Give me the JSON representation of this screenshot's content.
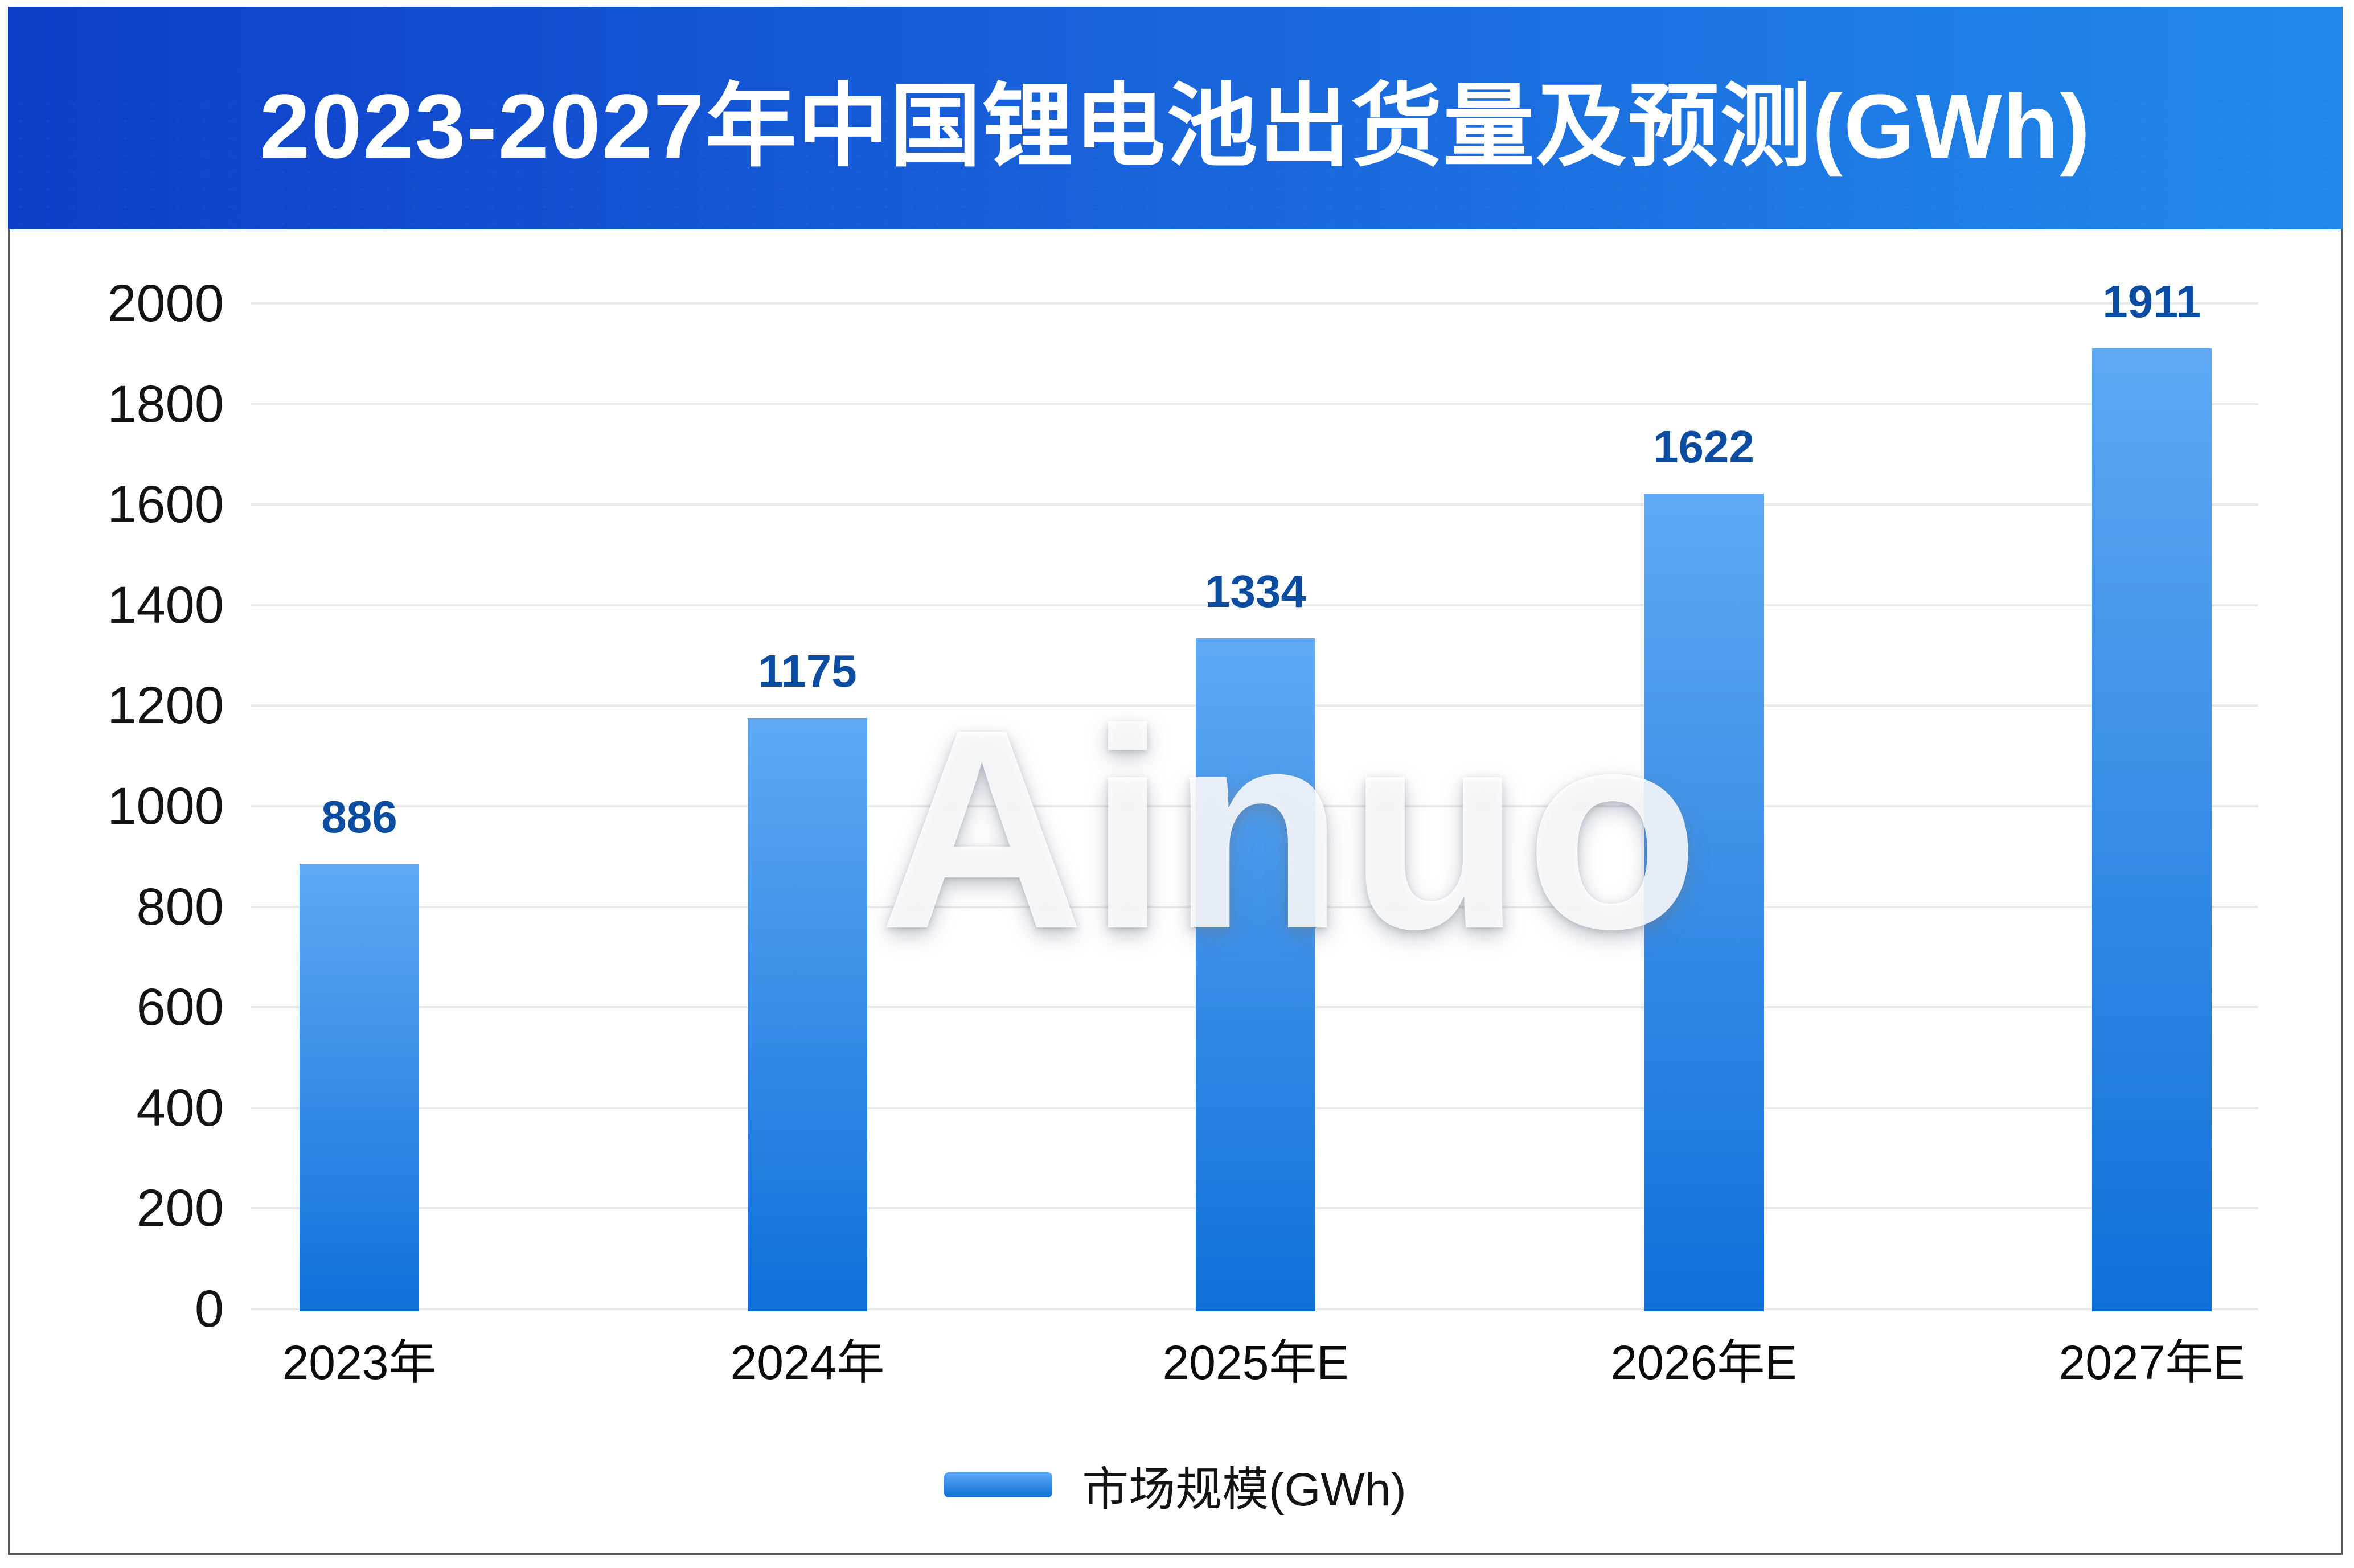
{
  "page": {
    "background": "#ffffff",
    "card_border_color": "#565656"
  },
  "header": {
    "title": "2023-2027年中国锂电池出货量及预测(GWh)",
    "gradient_left": "#0d3dc8",
    "gradient_right": "#2189ea",
    "text_color": "#ffffff"
  },
  "watermark": {
    "text": "Ainuo"
  },
  "legend": {
    "label": "市场规模(GWh)"
  },
  "chart_data": {
    "type": "bar",
    "title": "2023-2027年中国锂电池出货量及预测(GWh)",
    "categories": [
      "2023年",
      "2024年",
      "2025年E",
      "2026年E",
      "2027年E"
    ],
    "series": [
      {
        "name": "市场规模(GWh)",
        "values": [
          886,
          1175,
          1334,
          1622,
          1911
        ]
      }
    ],
    "xlabel": "",
    "ylabel": "",
    "ylim": [
      0,
      2000
    ],
    "yticks": [
      0,
      200,
      400,
      600,
      800,
      1000,
      1200,
      1400,
      1600,
      1800,
      2000
    ],
    "grid": true,
    "legend_position": "bottom",
    "colors": {
      "bar_gradient_top": "#5fa9f4",
      "bar_gradient_bottom": "#0f70d9",
      "value_label": "#0c4da2",
      "axis_text": "#141414",
      "gridline": "#e9e9e9"
    }
  }
}
